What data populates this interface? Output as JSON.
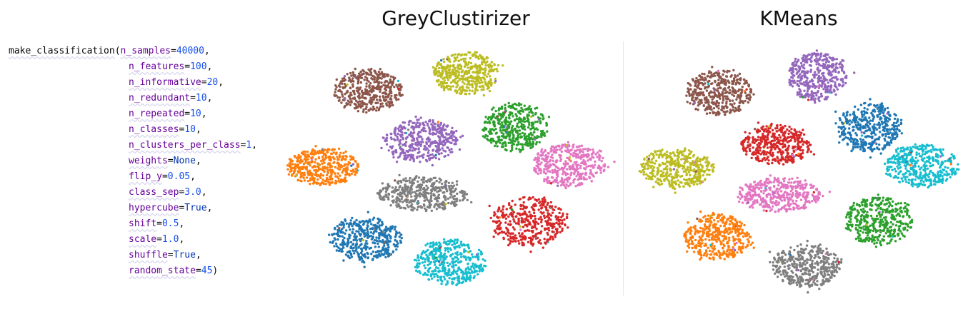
{
  "code": {
    "function_name": "make_classification",
    "params": [
      {
        "name": "n_samples",
        "value": "40000",
        "kind": "num"
      },
      {
        "name": "n_features",
        "value": "100",
        "kind": "num"
      },
      {
        "name": "n_informative",
        "value": "20",
        "kind": "num"
      },
      {
        "name": "n_redundant",
        "value": "10",
        "kind": "num"
      },
      {
        "name": "n_repeated",
        "value": "10",
        "kind": "num"
      },
      {
        "name": "n_classes",
        "value": "10",
        "kind": "num"
      },
      {
        "name": "n_clusters_per_class",
        "value": "1",
        "kind": "num"
      },
      {
        "name": "weights",
        "value": "None",
        "kind": "kw"
      },
      {
        "name": "flip_y",
        "value": "0.05",
        "kind": "num"
      },
      {
        "name": "class_sep",
        "value": "3.0",
        "kind": "num"
      },
      {
        "name": "hypercube",
        "value": "True",
        "kind": "kw"
      },
      {
        "name": "shift",
        "value": "0.5",
        "kind": "num"
      },
      {
        "name": "scale",
        "value": "1.0",
        "kind": "num"
      },
      {
        "name": "shuffle",
        "value": "True",
        "kind": "kw"
      },
      {
        "name": "random_state",
        "value": "45",
        "kind": "num"
      }
    ]
  },
  "chart_data": [
    {
      "type": "scatter",
      "title": "GreyClustirizer",
      "xlabel": "",
      "ylabel": "",
      "axes_visible": false,
      "grid": false,
      "clusters": [
        {
          "color": "#8c564b",
          "center": [
            515,
            127
          ],
          "spread": [
            48,
            30
          ],
          "count": 420
        },
        {
          "color": "#bcbd22",
          "center": [
            652,
            103
          ],
          "spread": [
            45,
            30
          ],
          "count": 420
        },
        {
          "color": "#9467bd",
          "center": [
            590,
            197
          ],
          "spread": [
            52,
            30
          ],
          "count": 420
        },
        {
          "color": "#2ca02c",
          "center": [
            720,
            178
          ],
          "spread": [
            46,
            34
          ],
          "count": 420
        },
        {
          "color": "#ff7f0e",
          "center": [
            452,
            234
          ],
          "spread": [
            50,
            26
          ],
          "count": 420
        },
        {
          "color": "#e377c2",
          "center": [
            796,
            232
          ],
          "spread": [
            52,
            30
          ],
          "count": 420
        },
        {
          "color": "#7f7f7f",
          "center": [
            592,
            272
          ],
          "spread": [
            62,
            24
          ],
          "count": 420
        },
        {
          "color": "#d62728",
          "center": [
            740,
            310
          ],
          "spread": [
            52,
            34
          ],
          "count": 420
        },
        {
          "color": "#1f77b4",
          "center": [
            513,
            334
          ],
          "spread": [
            50,
            32
          ],
          "count": 420
        },
        {
          "color": "#17becf",
          "center": [
            630,
            367
          ],
          "spread": [
            50,
            32
          ],
          "count": 420
        }
      ]
    },
    {
      "type": "scatter",
      "title": "KMeans",
      "xlabel": "",
      "ylabel": "",
      "axes_visible": false,
      "grid": false,
      "clusters": [
        {
          "color": "#8c564b",
          "center": [
            1006,
            130
          ],
          "spread": [
            46,
            32
          ],
          "count": 420
        },
        {
          "color": "#9467bd",
          "center": [
            1144,
            108
          ],
          "spread": [
            42,
            34
          ],
          "count": 420
        },
        {
          "color": "#d62728",
          "center": [
            1087,
            203
          ],
          "spread": [
            48,
            28
          ],
          "count": 420
        },
        {
          "color": "#1f77b4",
          "center": [
            1216,
            178
          ],
          "spread": [
            44,
            34
          ],
          "count": 420
        },
        {
          "color": "#bcbd22",
          "center": [
            948,
            235
          ],
          "spread": [
            52,
            28
          ],
          "count": 420
        },
        {
          "color": "#17becf",
          "center": [
            1290,
            232
          ],
          "spread": [
            52,
            30
          ],
          "count": 420
        },
        {
          "color": "#e377c2",
          "center": [
            1090,
            273
          ],
          "spread": [
            58,
            24
          ],
          "count": 420
        },
        {
          "color": "#2ca02c",
          "center": [
            1230,
            310
          ],
          "spread": [
            48,
            34
          ],
          "count": 420
        },
        {
          "color": "#ff7f0e",
          "center": [
            1005,
            332
          ],
          "spread": [
            46,
            32
          ],
          "count": 420
        },
        {
          "color": "#7f7f7f",
          "center": [
            1128,
            372
          ],
          "spread": [
            48,
            30
          ],
          "count": 420
        }
      ]
    }
  ]
}
